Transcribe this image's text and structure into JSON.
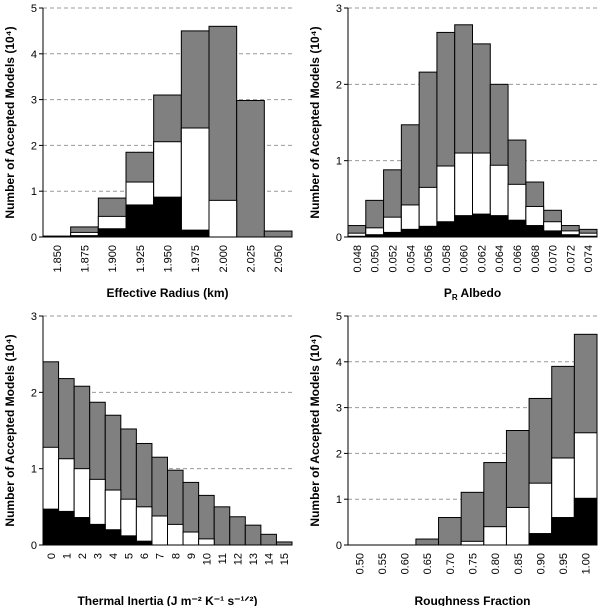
{
  "chart_data": [
    {
      "type": "bar",
      "x_label": "Effective Radius (km)",
      "y_label": "Number of Accepted Models (10⁴)",
      "categories": [
        "1.850",
        "1.875",
        "1.900",
        "1.925",
        "1.950",
        "1.975",
        "2.000",
        "2.025",
        "2.050"
      ],
      "series": [
        {
          "color": "#808080",
          "values": [
            0.02,
            0.22,
            0.85,
            1.85,
            3.1,
            4.5,
            4.6,
            2.98,
            0.13
          ]
        },
        {
          "color": "#ffffff",
          "values": [
            0,
            0.1,
            0.45,
            1.2,
            2.08,
            2.38,
            0.8,
            0,
            0
          ]
        },
        {
          "color": "#000000",
          "values": [
            0,
            0.03,
            0.18,
            0.7,
            0.87,
            0.15,
            0,
            0,
            0
          ]
        }
      ],
      "ylim": [
        0,
        5
      ],
      "yticks": [
        0,
        1,
        2,
        3,
        4,
        5
      ],
      "grid": true
    },
    {
      "type": "bar",
      "x_label": [
        {
          "text": "P"
        },
        {
          "text": "R",
          "sub": true
        },
        {
          "text": " Albedo"
        }
      ],
      "y_label": "Number of Accepted Models (10⁴)",
      "categories": [
        "0.048",
        "0.050",
        "0.052",
        "0.054",
        "0.056",
        "0.058",
        "0.060",
        "0.062",
        "0.064",
        "0.066",
        "0.068",
        "0.070",
        "0.072",
        "0.074"
      ],
      "series": [
        {
          "color": "#808080",
          "values": [
            0.15,
            0.48,
            0.88,
            1.47,
            2.16,
            2.68,
            2.78,
            2.53,
            2.0,
            1.27,
            0.72,
            0.35,
            0.15,
            0.1
          ]
        },
        {
          "color": "#ffffff",
          "values": [
            0.05,
            0.12,
            0.26,
            0.42,
            0.65,
            0.93,
            1.1,
            1.1,
            0.94,
            0.69,
            0.4,
            0.2,
            0.08,
            0.05
          ]
        },
        {
          "color": "#000000",
          "values": [
            0.01,
            0.03,
            0.06,
            0.1,
            0.14,
            0.2,
            0.28,
            0.3,
            0.28,
            0.22,
            0.15,
            0.08,
            0.03,
            0.01
          ]
        }
      ],
      "ylim": [
        0,
        3
      ],
      "yticks": [
        0,
        1,
        2,
        3
      ],
      "grid": true
    },
    {
      "type": "bar",
      "x_label": "Thermal Inertia (J m⁻² K⁻¹ s⁻¹ᐟ²)",
      "y_label": "Number of Accepted Models (10⁴)",
      "categories": [
        "0",
        "1",
        "2",
        "3",
        "4",
        "5",
        "6",
        "7",
        "8",
        "9",
        "10",
        "11",
        "12",
        "13",
        "14",
        "15"
      ],
      "series": [
        {
          "color": "#808080",
          "values": [
            2.4,
            2.18,
            2.08,
            1.87,
            1.7,
            1.52,
            1.33,
            1.15,
            0.98,
            0.82,
            0.65,
            0.5,
            0.37,
            0.26,
            0.14,
            0.04
          ]
        },
        {
          "color": "#ffffff",
          "values": [
            1.28,
            1.13,
            1.0,
            0.86,
            0.72,
            0.6,
            0.5,
            0.38,
            0.27,
            0.17,
            0.08,
            0,
            0,
            0,
            0,
            0
          ]
        },
        {
          "color": "#000000",
          "values": [
            0.47,
            0.44,
            0.36,
            0.27,
            0.2,
            0.12,
            0.05,
            0,
            0,
            0,
            0,
            0,
            0,
            0,
            0,
            0
          ]
        }
      ],
      "ylim": [
        0,
        3
      ],
      "yticks": [
        0,
        1,
        2,
        3
      ],
      "grid": true
    },
    {
      "type": "bar",
      "x_label": "Roughness Fraction",
      "y_label": "Number of Accepted Models (10⁴)",
      "categories": [
        "0.50",
        "0.55",
        "0.60",
        "0.65",
        "0.70",
        "0.75",
        "0.80",
        "0.85",
        "0.90",
        "0.95",
        "1.00"
      ],
      "series": [
        {
          "color": "#808080",
          "values": [
            0,
            0,
            0,
            0.13,
            0.6,
            1.15,
            1.8,
            2.5,
            3.2,
            3.9,
            4.6
          ]
        },
        {
          "color": "#ffffff",
          "values": [
            0,
            0,
            0,
            0,
            0,
            0.08,
            0.4,
            0.82,
            1.35,
            1.9,
            2.45
          ]
        },
        {
          "color": "#000000",
          "values": [
            0,
            0,
            0,
            0,
            0,
            0,
            0,
            0,
            0.25,
            0.6,
            1.02
          ]
        }
      ],
      "ylim": [
        0,
        5
      ],
      "yticks": [
        0,
        1,
        2,
        3,
        4,
        5
      ],
      "grid": true
    }
  ]
}
